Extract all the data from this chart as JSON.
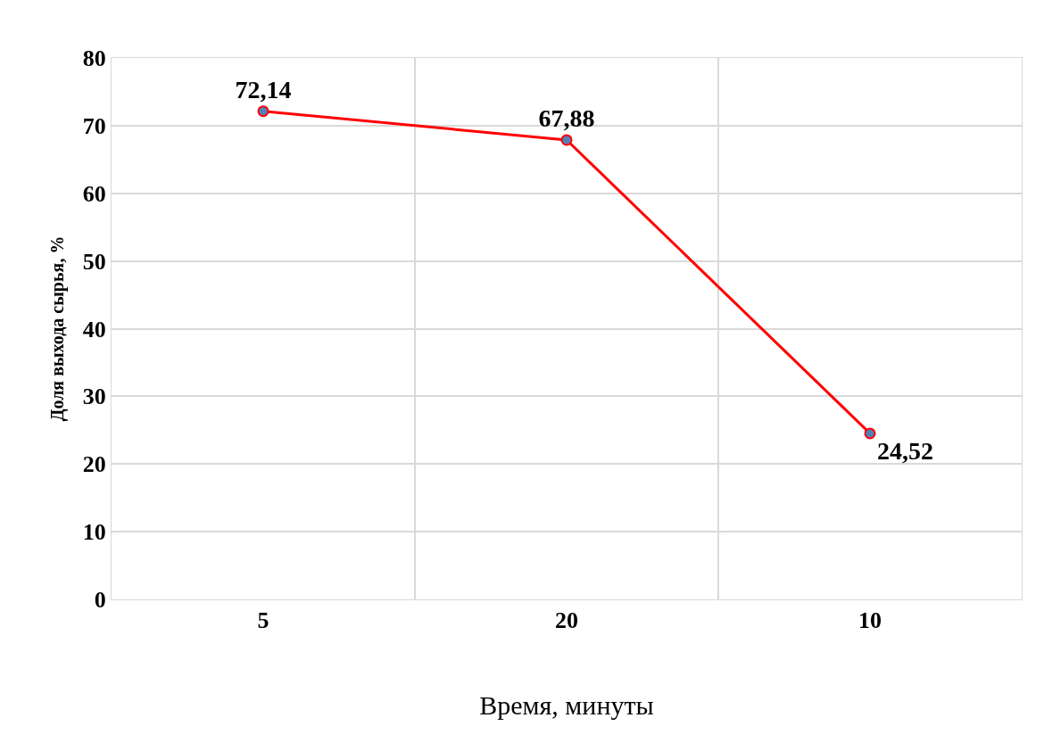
{
  "chart_data": {
    "type": "line",
    "xlabel": "Время, минуты",
    "ylabel": "Доля выхода сырья, %",
    "categories": [
      "5",
      "20",
      "10"
    ],
    "series": [
      {
        "color": "#ff0000",
        "values": [
          72.14,
          67.88,
          24.52
        ],
        "value_labels": [
          "72,14",
          "67,88",
          "24,52"
        ]
      }
    ],
    "ylim": [
      0,
      80
    ],
    "yticks": [
      0,
      10,
      20,
      30,
      40,
      50,
      60,
      70,
      80
    ],
    "grid": true,
    "marker": "circle",
    "line_style": "solid",
    "legend": false
  }
}
